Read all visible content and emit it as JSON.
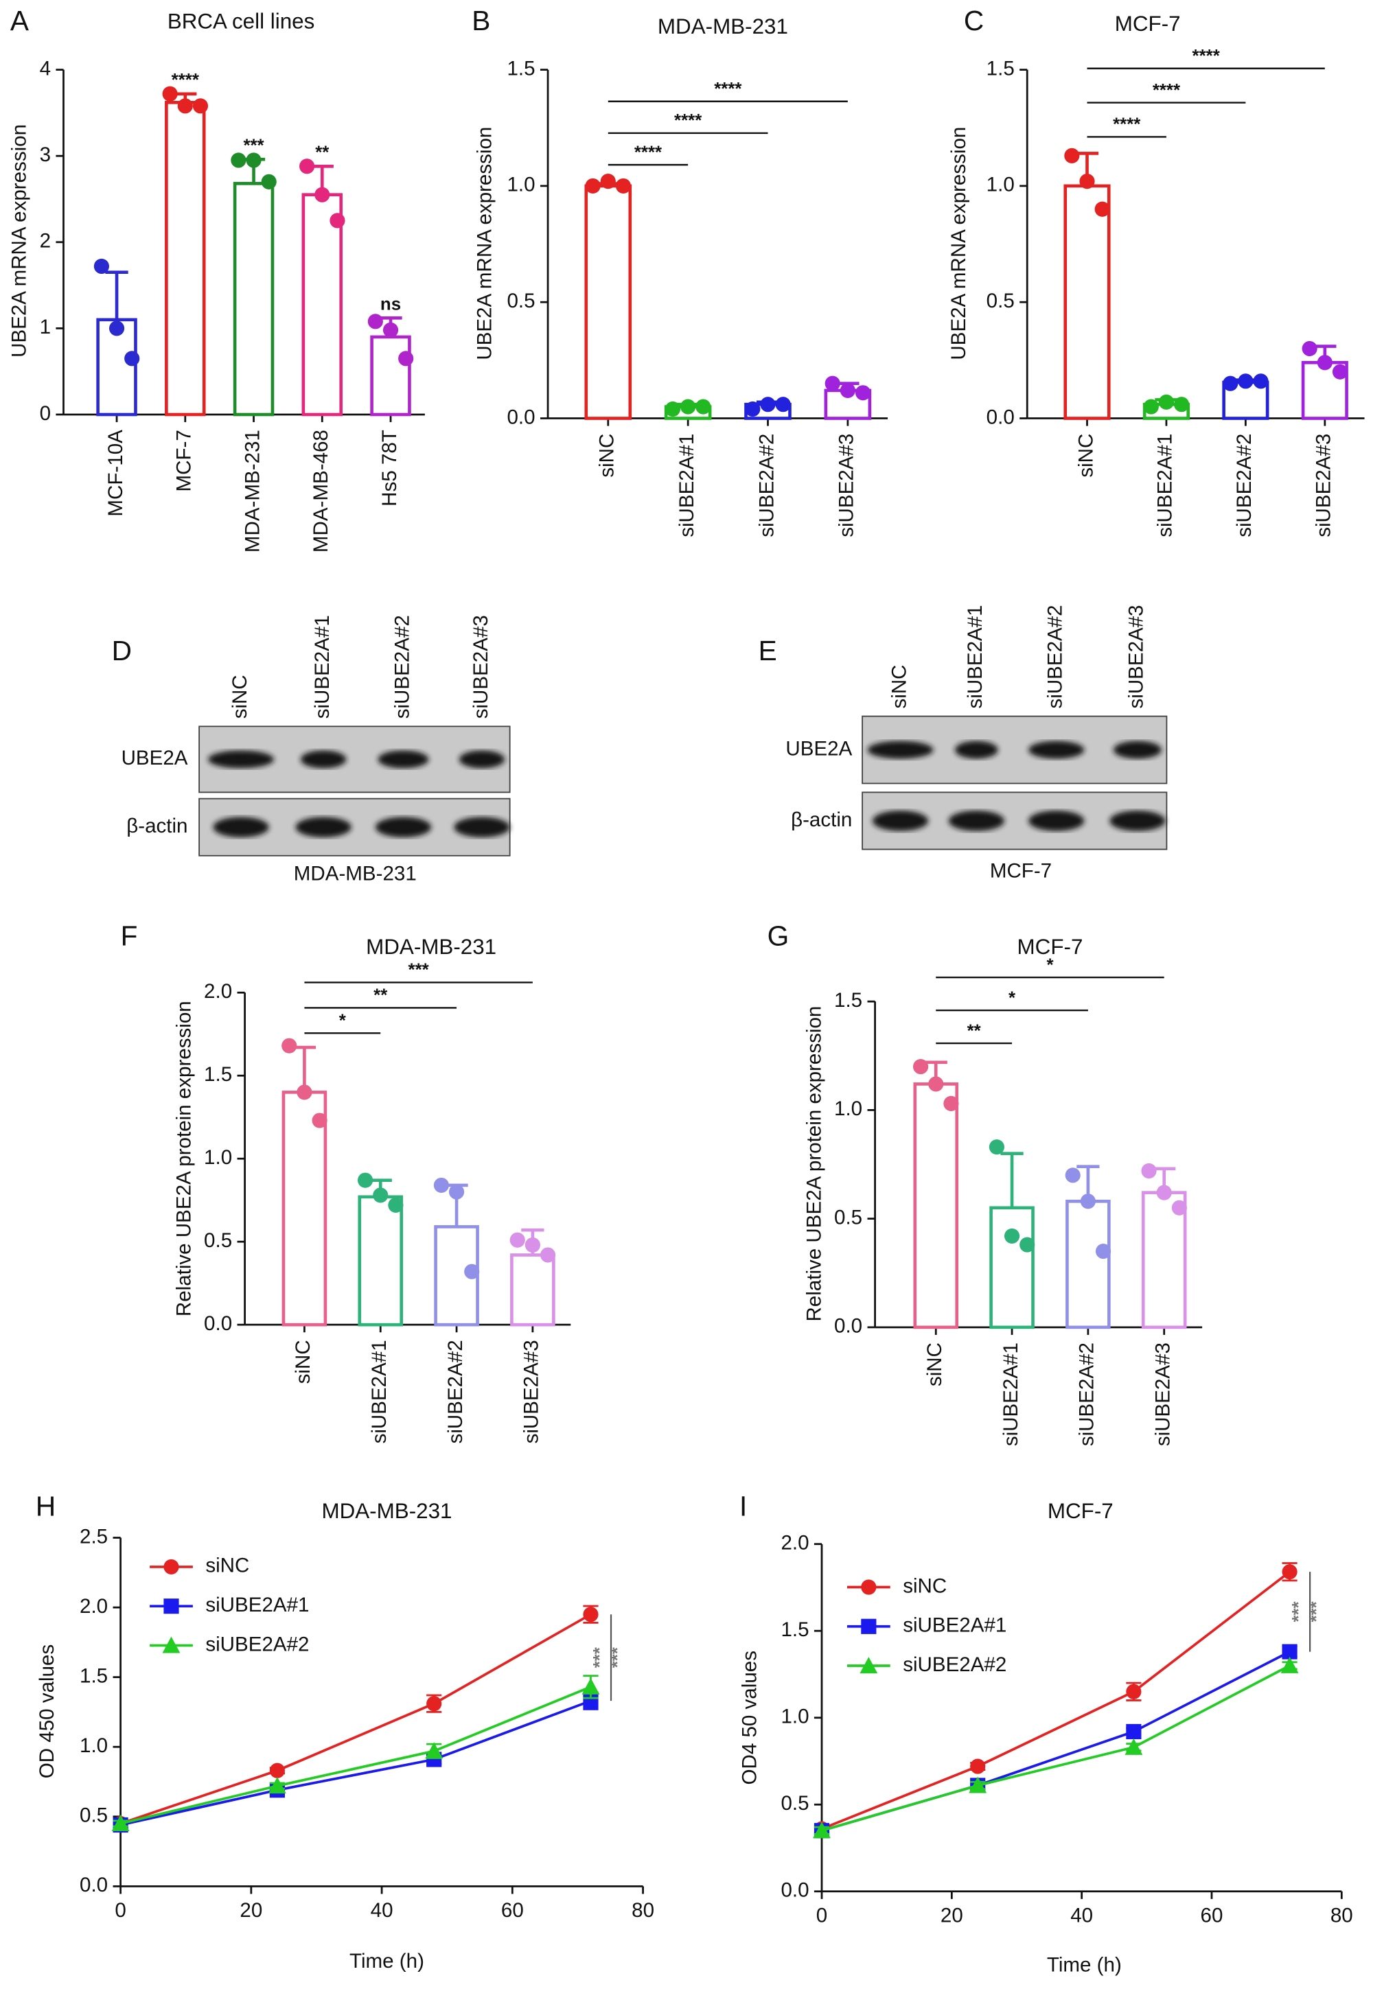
{
  "chart_data": [
    {
      "type": "bar",
      "panel": "A",
      "title": "BRCA cell lines",
      "ylabel": "UBE2A mRNA expression",
      "categories": [
        "MCF-10A",
        "MCF-7",
        "MDA-MB-231",
        "MDA-MB-468",
        "Hs5 78T"
      ],
      "colors": [
        "#2a2ad0",
        "#e52222",
        "#1f8c2a",
        "#e4267c",
        "#b024cc"
      ],
      "values": [
        1.1,
        3.62,
        2.68,
        2.55,
        0.9
      ],
      "errors": [
        0.55,
        0.1,
        0.28,
        0.33,
        0.22
      ],
      "points": [
        [
          1.72,
          1.0,
          0.65
        ],
        [
          3.72,
          3.58,
          3.58
        ],
        [
          2.95,
          2.95,
          2.7
        ],
        [
          2.88,
          2.55,
          2.25
        ],
        [
          1.08,
          0.98,
          0.65
        ]
      ],
      "significance": [
        null,
        "****",
        "***",
        "**",
        "ns"
      ],
      "significance_style": "above",
      "ylim": [
        0,
        4
      ],
      "yticks": [
        0,
        1,
        2,
        3,
        4
      ]
    },
    {
      "type": "bar",
      "panel": "B",
      "title": "MDA-MB-231",
      "ylabel": "UBE2A mRNA expression",
      "categories": [
        "siNC",
        "siUBE2A#1",
        "siUBE2A#2",
        "siUBE2A#3"
      ],
      "colors": [
        "#e52222",
        "#22b822",
        "#2222dd",
        "#a022dd"
      ],
      "values": [
        1.0,
        0.05,
        0.06,
        0.12
      ],
      "errors": [
        0.01,
        0.01,
        0.01,
        0.03
      ],
      "points": [
        [
          1.0,
          1.02,
          1.0
        ],
        [
          0.04,
          0.05,
          0.05
        ],
        [
          0.04,
          0.06,
          0.06
        ],
        [
          0.15,
          0.12,
          0.11
        ]
      ],
      "significance": [
        null,
        "****",
        "****",
        "****"
      ],
      "significance_style": "bracket",
      "ylim": [
        0,
        1.5
      ],
      "yticks": [
        {
          "value": 0,
          "label": "0.0"
        },
        {
          "value": 0.5,
          "label": "0.5"
        },
        {
          "value": 1,
          "label": "1.0"
        },
        {
          "value": 1.5,
          "label": "1.5"
        }
      ]
    },
    {
      "type": "bar",
      "panel": "C",
      "title": "MCF-7",
      "ylabel": "UBE2A mRNA expression",
      "categories": [
        "siNC",
        "siUBE2A#1",
        "siUBE2A#2",
        "siUBE2A#3"
      ],
      "colors": [
        "#e52222",
        "#22b822",
        "#2222dd",
        "#a022dd"
      ],
      "values": [
        1.0,
        0.06,
        0.155,
        0.24
      ],
      "errors": [
        0.14,
        0.02,
        0.01,
        0.07
      ],
      "points": [
        [
          1.13,
          1.02,
          0.9
        ],
        [
          0.05,
          0.07,
          0.06
        ],
        [
          0.15,
          0.16,
          0.16
        ],
        [
          0.3,
          0.24,
          0.2
        ]
      ],
      "significance": [
        null,
        "****",
        "****",
        "****"
      ],
      "significance_style": "bracket",
      "ylim": [
        0,
        1.5
      ],
      "yticks": [
        {
          "value": 0,
          "label": "0.0"
        },
        {
          "value": 0.5,
          "label": "0.5"
        },
        {
          "value": 1,
          "label": "1.0"
        },
        {
          "value": 1.5,
          "label": "1.5"
        }
      ]
    },
    {
      "type": "bar",
      "panel": "F",
      "title": "MDA-MB-231",
      "ylabel": "Relative UBE2A protein expression",
      "categories": [
        "siNC",
        "siUBE2A#1",
        "siUBE2A#2",
        "siUBE2A#3"
      ],
      "colors": [
        "#e8608a",
        "#2db37a",
        "#9090e8",
        "#d890e8"
      ],
      "values": [
        1.4,
        0.77,
        0.59,
        0.42
      ],
      "errors": [
        0.27,
        0.1,
        0.25,
        0.15
      ],
      "points": [
        [
          1.68,
          1.4,
          1.23
        ],
        [
          0.87,
          0.78,
          0.72
        ],
        [
          0.84,
          0.8,
          0.32
        ],
        [
          0.51,
          0.48,
          0.42
        ]
      ],
      "significance": [
        null,
        "*",
        "**",
        "***"
      ],
      "significance_style": "bracket",
      "ylim": [
        0,
        2
      ],
      "yticks": [
        {
          "value": 0,
          "label": "0.0"
        },
        {
          "value": 0.5,
          "label": "0.5"
        },
        {
          "value": 1,
          "label": "1.0"
        },
        {
          "value": 1.5,
          "label": "1.5"
        },
        {
          "value": 2,
          "label": "2.0"
        }
      ]
    },
    {
      "type": "bar",
      "panel": "G",
      "title": "MCF-7",
      "ylabel": "Relative UBE2A protein expression",
      "categories": [
        "siNC",
        "siUBE2A#1",
        "siUBE2A#2",
        "siUBE2A#3"
      ],
      "colors": [
        "#e8608a",
        "#2db37a",
        "#9090e8",
        "#d890e8"
      ],
      "values": [
        1.12,
        0.55,
        0.58,
        0.62
      ],
      "errors": [
        0.1,
        0.25,
        0.16,
        0.11
      ],
      "points": [
        [
          1.2,
          1.12,
          1.03
        ],
        [
          0.83,
          0.42,
          0.38
        ],
        [
          0.7,
          0.58,
          0.35
        ],
        [
          0.72,
          0.62,
          0.55
        ]
      ],
      "significance": [
        null,
        "**",
        "*",
        "*"
      ],
      "significance_style": "bracket",
      "ylim": [
        0,
        1.5
      ],
      "yticks": [
        {
          "value": 0,
          "label": "0.0"
        },
        {
          "value": 0.5,
          "label": "0.5"
        },
        {
          "value": 1,
          "label": "1.0"
        },
        {
          "value": 1.5,
          "label": "1.5"
        }
      ]
    },
    {
      "type": "line",
      "panel": "H",
      "title": "MDA-MB-231",
      "xlabel": "Time (h)",
      "ylabel": "OD 450 values",
      "x": [
        0,
        24,
        48,
        72
      ],
      "series": [
        {
          "name": "siNC",
          "color": "#e52222",
          "marker": "circle",
          "values": [
            0.45,
            0.83,
            1.31,
            1.95
          ],
          "errors": [
            0.02,
            0.02,
            0.06,
            0.06
          ]
        },
        {
          "name": "siUBE2A#1",
          "color": "#1a1aee",
          "marker": "square",
          "values": [
            0.44,
            0.69,
            0.91,
            1.33
          ],
          "errors": [
            0.02,
            0.02,
            0.03,
            0.06
          ]
        },
        {
          "name": "siUBE2A#2",
          "color": "#22cc22",
          "marker": "triangle",
          "values": [
            0.45,
            0.72,
            0.97,
            1.43
          ],
          "errors": [
            0.02,
            0.02,
            0.05,
            0.08
          ]
        }
      ],
      "annotations": [
        "***",
        "***"
      ],
      "legend": "upper left",
      "xlim": [
        0,
        80
      ],
      "xticks": [
        0,
        20,
        40,
        60,
        80
      ],
      "ylim": [
        0,
        2.5
      ],
      "yticks": [
        {
          "value": 0,
          "label": "0.0"
        },
        {
          "value": 0.5,
          "label": "0.5"
        },
        {
          "value": 1,
          "label": "1.0"
        },
        {
          "value": 1.5,
          "label": "1.5"
        },
        {
          "value": 2,
          "label": "2.0"
        },
        {
          "value": 2.5,
          "label": "2.5"
        }
      ]
    },
    {
      "type": "line",
      "panel": "I",
      "title": "MCF-7",
      "xlabel": "Time (h)",
      "ylabel": "OD4 50 values",
      "x": [
        0,
        24,
        48,
        72
      ],
      "series": [
        {
          "name": "siNC",
          "color": "#e52222",
          "marker": "circle",
          "values": [
            0.36,
            0.72,
            1.15,
            1.84
          ],
          "errors": [
            0.02,
            0.02,
            0.05,
            0.05
          ]
        },
        {
          "name": "siUBE2A#1",
          "color": "#1a1aee",
          "marker": "square",
          "values": [
            0.35,
            0.61,
            0.92,
            1.38
          ],
          "errors": [
            0.02,
            0.02,
            0.02,
            0.03
          ]
        },
        {
          "name": "siUBE2A#2",
          "color": "#22cc22",
          "marker": "triangle",
          "values": [
            0.35,
            0.61,
            0.83,
            1.3
          ],
          "errors": [
            0.02,
            0.02,
            0.02,
            0.02
          ]
        }
      ],
      "annotations": [
        "***",
        "***"
      ],
      "legend": "upper left",
      "xlim": [
        0,
        80
      ],
      "xticks": [
        0,
        20,
        40,
        60,
        80
      ],
      "ylim": [
        0,
        2
      ],
      "yticks": [
        {
          "value": 0,
          "label": "0.0"
        },
        {
          "value": 0.5,
          "label": "0.5"
        },
        {
          "value": 1,
          "label": "1.0"
        },
        {
          "value": 1.5,
          "label": "1.5"
        },
        {
          "value": 2,
          "label": "2.0"
        }
      ]
    }
  ],
  "blots": [
    {
      "panel": "D",
      "lanes": [
        "siNC",
        "siUBE2A#1",
        "siUBE2A#2",
        "siUBE2A#3"
      ],
      "rows": [
        "UBE2A",
        "β-actin"
      ],
      "caption": "MDA-MB-231"
    },
    {
      "panel": "E",
      "lanes": [
        "siNC",
        "siUBE2A#1",
        "siUBE2A#2",
        "siUBE2A#3"
      ],
      "rows": [
        "UBE2A",
        "β-actin"
      ],
      "caption": "MCF-7"
    }
  ]
}
